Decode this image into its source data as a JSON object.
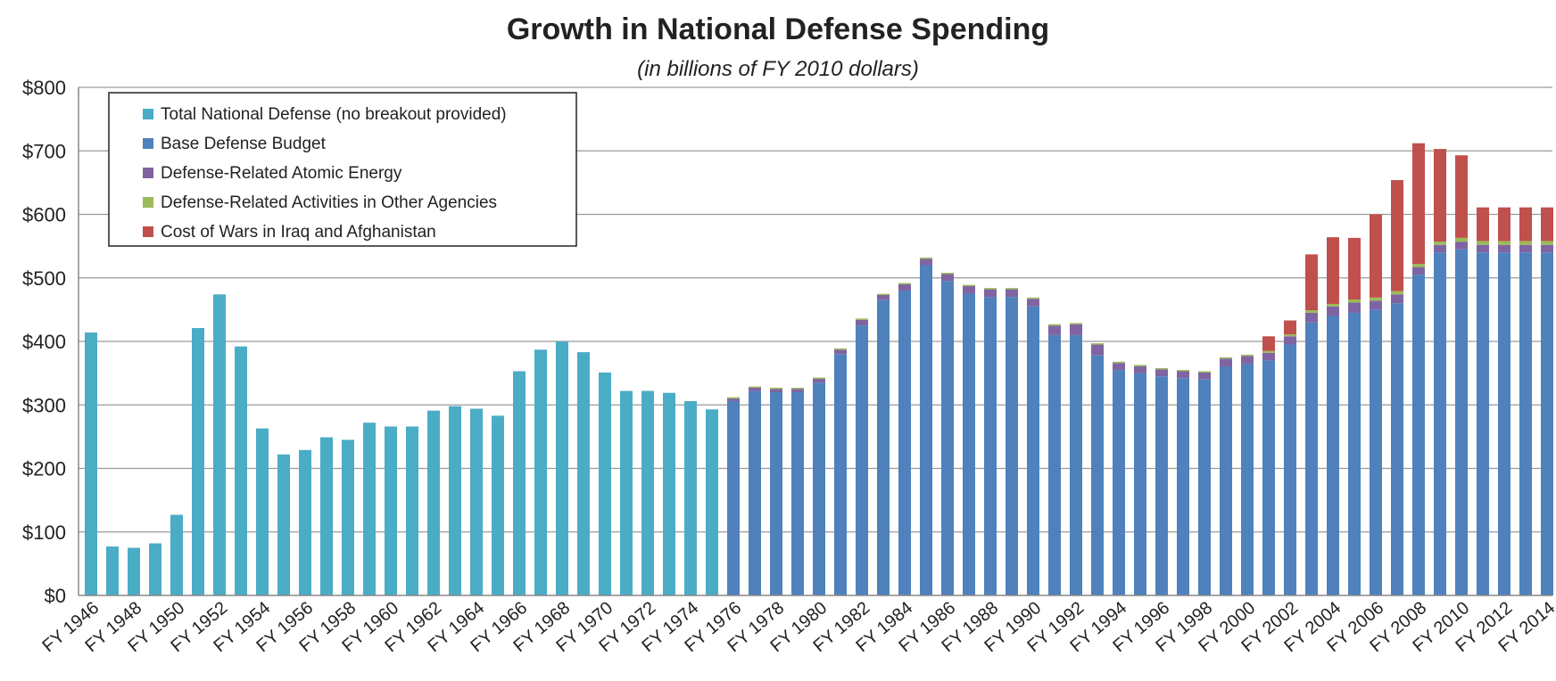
{
  "chart_data": {
    "type": "bar",
    "title": "Growth in National Defense Spending",
    "subtitle": "(in billions of FY 2010 dollars)",
    "xlabel": "",
    "ylabel": "",
    "ylim": [
      0,
      800
    ],
    "y_ticks": [
      "$0",
      "$100",
      "$200",
      "$300",
      "$400",
      "$500",
      "$600",
      "$700",
      "$800"
    ],
    "y_tick_values": [
      0,
      100,
      200,
      300,
      400,
      500,
      600,
      700,
      800
    ],
    "stacked": true,
    "grid": true,
    "legend_position": "top-left",
    "categories": [
      "1946",
      "1947",
      "1948",
      "1949",
      "1950",
      "1951",
      "1952",
      "1953",
      "1954",
      "1955",
      "1956",
      "1957",
      "1958",
      "1959",
      "1960",
      "1961",
      "1962",
      "1963",
      "1964",
      "1965",
      "1966",
      "1967",
      "1968",
      "1969",
      "1970",
      "1971",
      "1972",
      "1973",
      "1974",
      "1975",
      "1976",
      "1977",
      "1978",
      "1979",
      "1980",
      "1981",
      "1982",
      "1983",
      "1984",
      "1985",
      "1986",
      "1987",
      "1988",
      "1989",
      "1990",
      "1991",
      "1992",
      "1993",
      "1994",
      "1995",
      "1996",
      "1997",
      "1998",
      "1999",
      "2000",
      "2001",
      "2002",
      "2003",
      "2004",
      "2005",
      "2006",
      "2007",
      "2008",
      "2009",
      "2010",
      "2011",
      "2012",
      "2013",
      "2014"
    ],
    "x_tick_labels": [
      "FY 1946",
      "FY 1948",
      "FY 1950",
      "FY 1952",
      "FY 1954",
      "FY 1956",
      "FY 1958",
      "FY 1960",
      "FY 1962",
      "FY 1964",
      "FY 1966",
      "FY 1968",
      "FY 1970",
      "FY 1972",
      "FY 1974",
      "FY 1976",
      "FY 1978",
      "FY 1980",
      "FY 1982",
      "FY 1984",
      "FY 1986",
      "FY 1988",
      "FY 1990",
      "FY 1992",
      "FY 1994",
      "FY 1996",
      "FY 1998",
      "FY 2000",
      "FY 2002",
      "FY 2004",
      "FY 2006",
      "FY 2008",
      "FY 2010",
      "FY 2012",
      "FY 2014"
    ],
    "series": [
      {
        "name": "Total National Defense (no breakout provided)",
        "color": "#4bacc6",
        "values": [
          414,
          77,
          75,
          82,
          127,
          421,
          474,
          392,
          263,
          222,
          229,
          249,
          245,
          272,
          266,
          266,
          291,
          298,
          294,
          283,
          353,
          387,
          400,
          383,
          351,
          322,
          322,
          319,
          306,
          293,
          null,
          null,
          null,
          null,
          null,
          null,
          null,
          null,
          null,
          null,
          null,
          null,
          null,
          null,
          null,
          null,
          null,
          null,
          null,
          null,
          null,
          null,
          null,
          null,
          null,
          null,
          null,
          null,
          null,
          null,
          null,
          null,
          null,
          null,
          null,
          null,
          null,
          null,
          null
        ]
      },
      {
        "name": "Base Defense Budget",
        "color": "#4f81bd",
        "values": [
          null,
          null,
          null,
          null,
          null,
          null,
          null,
          null,
          null,
          null,
          null,
          null,
          null,
          null,
          null,
          null,
          null,
          null,
          null,
          null,
          null,
          null,
          null,
          null,
          null,
          null,
          null,
          null,
          null,
          null,
          306,
          322,
          320,
          320,
          335,
          380,
          425,
          465,
          480,
          520,
          495,
          475,
          470,
          470,
          455,
          410,
          410,
          378,
          355,
          350,
          345,
          342,
          340,
          360,
          365,
          370,
          395,
          430,
          440,
          445,
          450,
          460,
          505,
          540,
          545,
          540,
          540,
          540,
          540
        ]
      },
      {
        "name": "Defense-Related Atomic Energy",
        "color": "#8064a2",
        "values": [
          null,
          null,
          null,
          null,
          null,
          null,
          null,
          null,
          null,
          null,
          null,
          null,
          null,
          null,
          null,
          null,
          null,
          null,
          null,
          null,
          null,
          null,
          null,
          null,
          null,
          null,
          null,
          null,
          null,
          null,
          4,
          5,
          5,
          5,
          6,
          7,
          9,
          8,
          10,
          10,
          11,
          12,
          12,
          12,
          12,
          15,
          17,
          17,
          11,
          11,
          11,
          11,
          11,
          13,
          12,
          12,
          13,
          15,
          15,
          16,
          14,
          14,
          12,
          12,
          12,
          12,
          12,
          12,
          12
        ]
      },
      {
        "name": "Defense-Related Activities in Other Agencies",
        "color": "#9bbb59",
        "values": [
          null,
          null,
          null,
          null,
          null,
          null,
          null,
          null,
          null,
          null,
          null,
          null,
          null,
          null,
          null,
          null,
          null,
          null,
          null,
          null,
          null,
          null,
          null,
          null,
          null,
          null,
          null,
          null,
          null,
          null,
          2,
          2,
          2,
          2,
          2,
          2,
          2,
          2,
          2,
          2,
          2,
          2,
          2,
          2,
          2,
          2,
          2,
          2,
          2,
          2,
          2,
          2,
          2,
          2,
          2,
          3,
          3,
          4,
          4,
          5,
          5,
          5,
          5,
          5,
          6,
          6,
          6,
          6,
          6
        ]
      },
      {
        "name": "Cost of Wars in Iraq and Afghanistan",
        "color": "#c0504d",
        "values": [
          null,
          null,
          null,
          null,
          null,
          null,
          null,
          null,
          null,
          null,
          null,
          null,
          null,
          null,
          null,
          null,
          null,
          null,
          null,
          null,
          null,
          null,
          null,
          null,
          null,
          null,
          null,
          null,
          null,
          null,
          null,
          null,
          null,
          null,
          null,
          null,
          null,
          null,
          null,
          null,
          null,
          null,
          null,
          null,
          null,
          null,
          null,
          null,
          null,
          null,
          null,
          null,
          null,
          null,
          null,
          23,
          22,
          88,
          105,
          97,
          131,
          175,
          190,
          146,
          130,
          53,
          53,
          53,
          53
        ]
      }
    ]
  }
}
